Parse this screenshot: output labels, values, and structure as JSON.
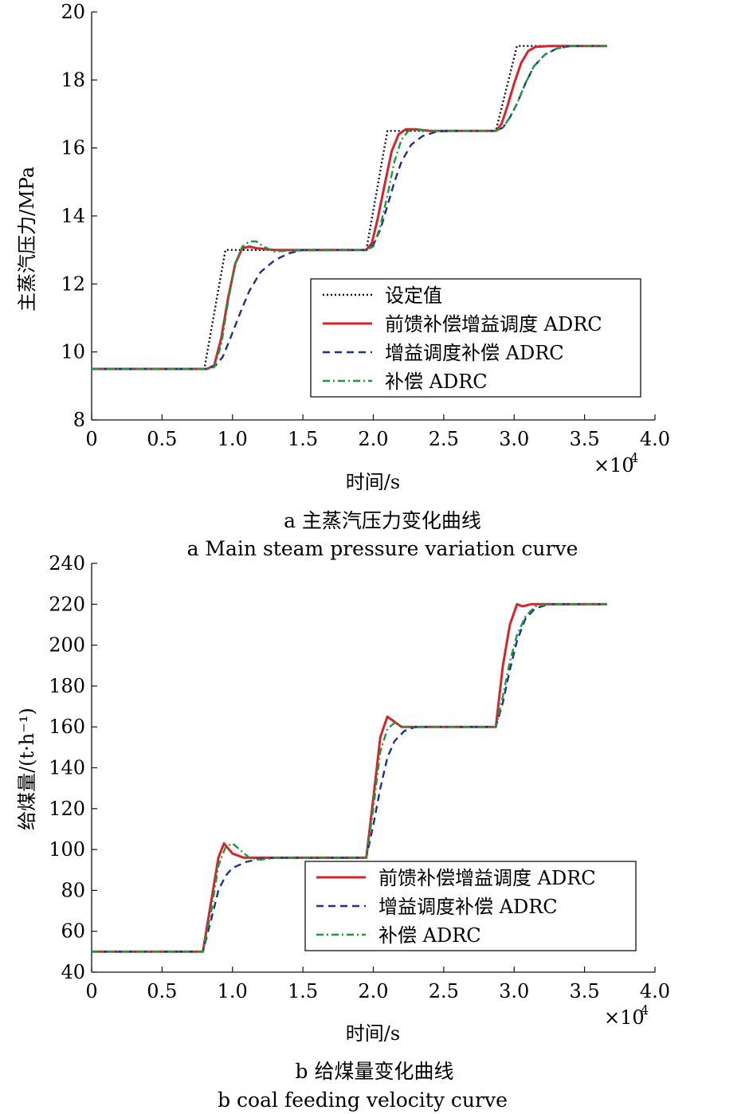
{
  "colors": {
    "setpoint": "#111111",
    "feedforward": "#d8232a",
    "gain_scheduling": "#1f2f8f",
    "compensation": "#1a9a3a"
  },
  "chart_data": [
    {
      "type": "line",
      "x_multiplier": "×10^4",
      "xlabel": "时间/s",
      "ylabel": "主蒸汽压力/MPa",
      "xlim": [
        0,
        4.0
      ],
      "ylim": [
        8,
        20
      ],
      "xticks": [
        "0",
        "0.5",
        "1.0",
        "1.5",
        "2.0",
        "2.5",
        "3.0",
        "3.5",
        "4.0"
      ],
      "yticks": [
        "8",
        "10",
        "12",
        "14",
        "16",
        "18",
        "20"
      ],
      "caption_cn": "a 主蒸汽压力变化曲线",
      "caption_en": "a  Main steam pressure variation curve",
      "legend": [
        "设定值",
        "前馈补偿增益调度 ADRC",
        "增益调度补偿 ADRC",
        "补偿 ADRC"
      ],
      "series": [
        {
          "name": "设定值",
          "style": "dotted",
          "color": "#111111",
          "x": [
            0,
            0.8,
            0.95,
            1.95,
            2.1,
            2.87,
            3.02,
            3.66
          ],
          "y": [
            9.5,
            9.5,
            13.0,
            13.0,
            16.5,
            16.5,
            19.0,
            19.0
          ]
        },
        {
          "name": "前馈补偿增益调度 ADRC",
          "style": "solid",
          "color": "#d8232a",
          "x": [
            0,
            0.82,
            0.87,
            0.92,
            0.97,
            1.02,
            1.07,
            1.12,
            1.17,
            1.3,
            1.95,
            1.99,
            2.03,
            2.08,
            2.13,
            2.18,
            2.23,
            2.3,
            2.4,
            2.87,
            2.91,
            2.95,
            3.0,
            3.05,
            3.1,
            3.15,
            3.25,
            3.66
          ],
          "y": [
            9.5,
            9.5,
            9.6,
            10.4,
            11.6,
            12.6,
            13.05,
            13.1,
            13.05,
            13.0,
            13.0,
            13.2,
            13.9,
            14.9,
            15.9,
            16.4,
            16.55,
            16.55,
            16.5,
            16.5,
            16.7,
            17.2,
            17.9,
            18.5,
            18.85,
            18.97,
            19.0,
            19.0
          ]
        },
        {
          "name": "增益调度补偿 ADRC",
          "style": "dashed",
          "color": "#1f2f8f",
          "x": [
            0,
            0.82,
            0.88,
            0.93,
            0.98,
            1.05,
            1.12,
            1.2,
            1.3,
            1.4,
            1.5,
            1.95,
            2.0,
            2.05,
            2.1,
            2.15,
            2.2,
            2.27,
            2.35,
            2.45,
            2.55,
            2.87,
            2.92,
            2.97,
            3.02,
            3.08,
            3.14,
            3.22,
            3.3,
            3.4,
            3.66
          ],
          "y": [
            9.5,
            9.5,
            9.6,
            9.85,
            10.35,
            11.1,
            11.8,
            12.35,
            12.7,
            12.9,
            13.0,
            13.0,
            13.15,
            13.6,
            14.3,
            15.0,
            15.6,
            16.1,
            16.35,
            16.48,
            16.5,
            16.5,
            16.6,
            16.9,
            17.3,
            17.9,
            18.4,
            18.75,
            18.92,
            19.0,
            19.0
          ]
        },
        {
          "name": "补偿 ADRC",
          "style": "dashdot",
          "color": "#1a9a3a",
          "x": [
            0,
            0.82,
            0.87,
            0.92,
            0.97,
            1.02,
            1.07,
            1.12,
            1.17,
            1.22,
            1.3,
            1.4,
            1.95,
            2.0,
            2.05,
            2.1,
            2.15,
            2.2,
            2.25,
            2.3,
            2.4,
            2.87,
            2.92,
            2.97,
            3.02,
            3.08,
            3.14,
            3.22,
            3.3,
            3.4,
            3.66
          ],
          "y": [
            9.5,
            9.5,
            9.55,
            10.2,
            11.5,
            12.6,
            13.1,
            13.25,
            13.25,
            13.1,
            12.95,
            12.98,
            13.0,
            13.1,
            13.7,
            14.6,
            15.6,
            16.25,
            16.5,
            16.55,
            16.5,
            16.5,
            16.6,
            16.9,
            17.3,
            17.9,
            18.4,
            18.75,
            18.92,
            19.0,
            19.0
          ]
        }
      ]
    },
    {
      "type": "line",
      "x_multiplier": "×10^4",
      "xlabel": "时间/s",
      "ylabel": "给煤量/(t·h⁻¹)",
      "xlim": [
        0,
        4.0
      ],
      "ylim": [
        40,
        240
      ],
      "xticks": [
        "0",
        "0.5",
        "1.0",
        "1.5",
        "2.0",
        "2.5",
        "3.0",
        "3.5",
        "4.0"
      ],
      "yticks": [
        "40",
        "60",
        "80",
        "100",
        "120",
        "140",
        "160",
        "180",
        "200",
        "220",
        "240"
      ],
      "caption_cn": "b 给煤量变化曲线",
      "caption_en": "b  coal feeding velocity curve",
      "legend": [
        "前馈补偿增益调度 ADRC",
        "增益调度补偿 ADRC",
        "补偿 ADRC"
      ],
      "series": [
        {
          "name": "前馈补偿增益调度 ADRC",
          "style": "solid",
          "color": "#d8232a",
          "x": [
            0,
            0.79,
            0.85,
            0.9,
            0.94,
            1.0,
            1.08,
            1.2,
            1.95,
            2.0,
            2.05,
            2.1,
            2.14,
            2.2,
            2.3,
            2.87,
            2.92,
            2.97,
            3.02,
            3.06,
            3.12,
            3.66
          ],
          "y": [
            50,
            50,
            75,
            96,
            103,
            98,
            96,
            96,
            96,
            125,
            155,
            165,
            163,
            160,
            160,
            160,
            190,
            210,
            220,
            219,
            220,
            220
          ]
        },
        {
          "name": "增益调度补偿 ADRC",
          "style": "dashed",
          "color": "#1f2f8f",
          "x": [
            0,
            0.79,
            0.85,
            0.9,
            0.95,
            1.0,
            1.1,
            1.2,
            1.3,
            1.95,
            2.0,
            2.05,
            2.1,
            2.15,
            2.22,
            2.3,
            2.4,
            2.87,
            2.92,
            2.97,
            3.02,
            3.08,
            3.15,
            3.25,
            3.66
          ],
          "y": [
            50,
            50,
            66,
            80,
            87,
            91,
            94,
            95.5,
            96,
            96,
            112,
            130,
            145,
            153,
            158,
            160,
            160,
            160,
            172,
            188,
            202,
            213,
            218,
            220,
            220
          ]
        },
        {
          "name": "补偿 ADRC",
          "style": "dashdot",
          "color": "#1a9a3a",
          "x": [
            0,
            0.79,
            0.85,
            0.9,
            0.95,
            1.0,
            1.05,
            1.12,
            1.2,
            1.3,
            1.4,
            1.95,
            2.0,
            2.05,
            2.1,
            2.15,
            2.2,
            2.3,
            2.87,
            2.92,
            2.97,
            3.02,
            3.08,
            3.15,
            3.25,
            3.66
          ],
          "y": [
            50,
            50,
            70,
            92,
            101,
            103,
            100,
            96,
            95,
            96,
            96,
            96,
            120,
            148,
            159,
            162,
            160,
            160,
            160,
            175,
            192,
            205,
            214,
            219,
            220,
            220
          ]
        }
      ]
    }
  ]
}
